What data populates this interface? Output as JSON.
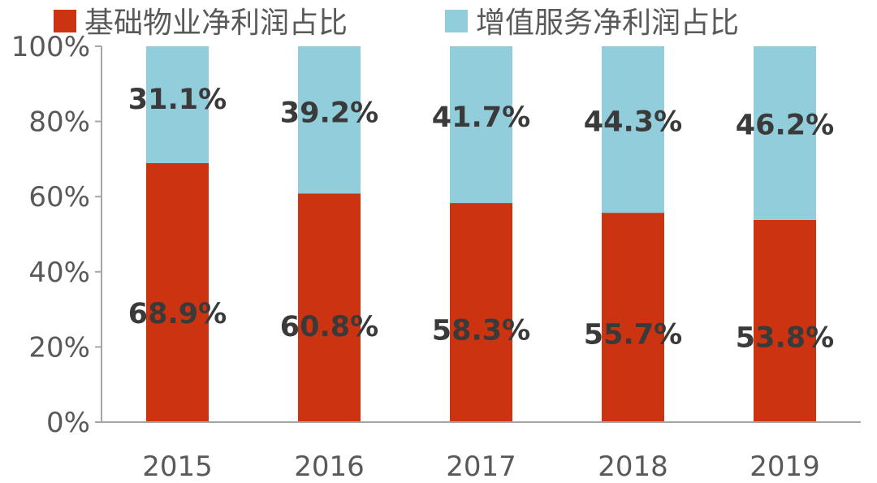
{
  "chart_data": {
    "type": "bar",
    "stacked": true,
    "categories": [
      "2015",
      "2016",
      "2017",
      "2018",
      "2019"
    ],
    "series": [
      {
        "name": "基础物业净利润占比",
        "values": [
          68.9,
          60.8,
          58.3,
          55.7,
          53.8
        ],
        "labels": [
          "68.9%",
          "60.8%",
          "58.3%",
          "55.7%",
          "53.8%"
        ],
        "color": "#cc3311"
      },
      {
        "name": "增值服务净利润占比",
        "values": [
          31.1,
          39.2,
          41.7,
          44.3,
          46.2
        ],
        "labels": [
          "31.1%",
          "39.2%",
          "41.7%",
          "44.3%",
          "46.2%"
        ],
        "color": "#92cddc"
      }
    ],
    "y_ticks": [
      "0%",
      "20%",
      "40%",
      "60%",
      "80%",
      "100%"
    ],
    "ylim": [
      0,
      100
    ],
    "legend_position": "top-left",
    "grid": false
  }
}
